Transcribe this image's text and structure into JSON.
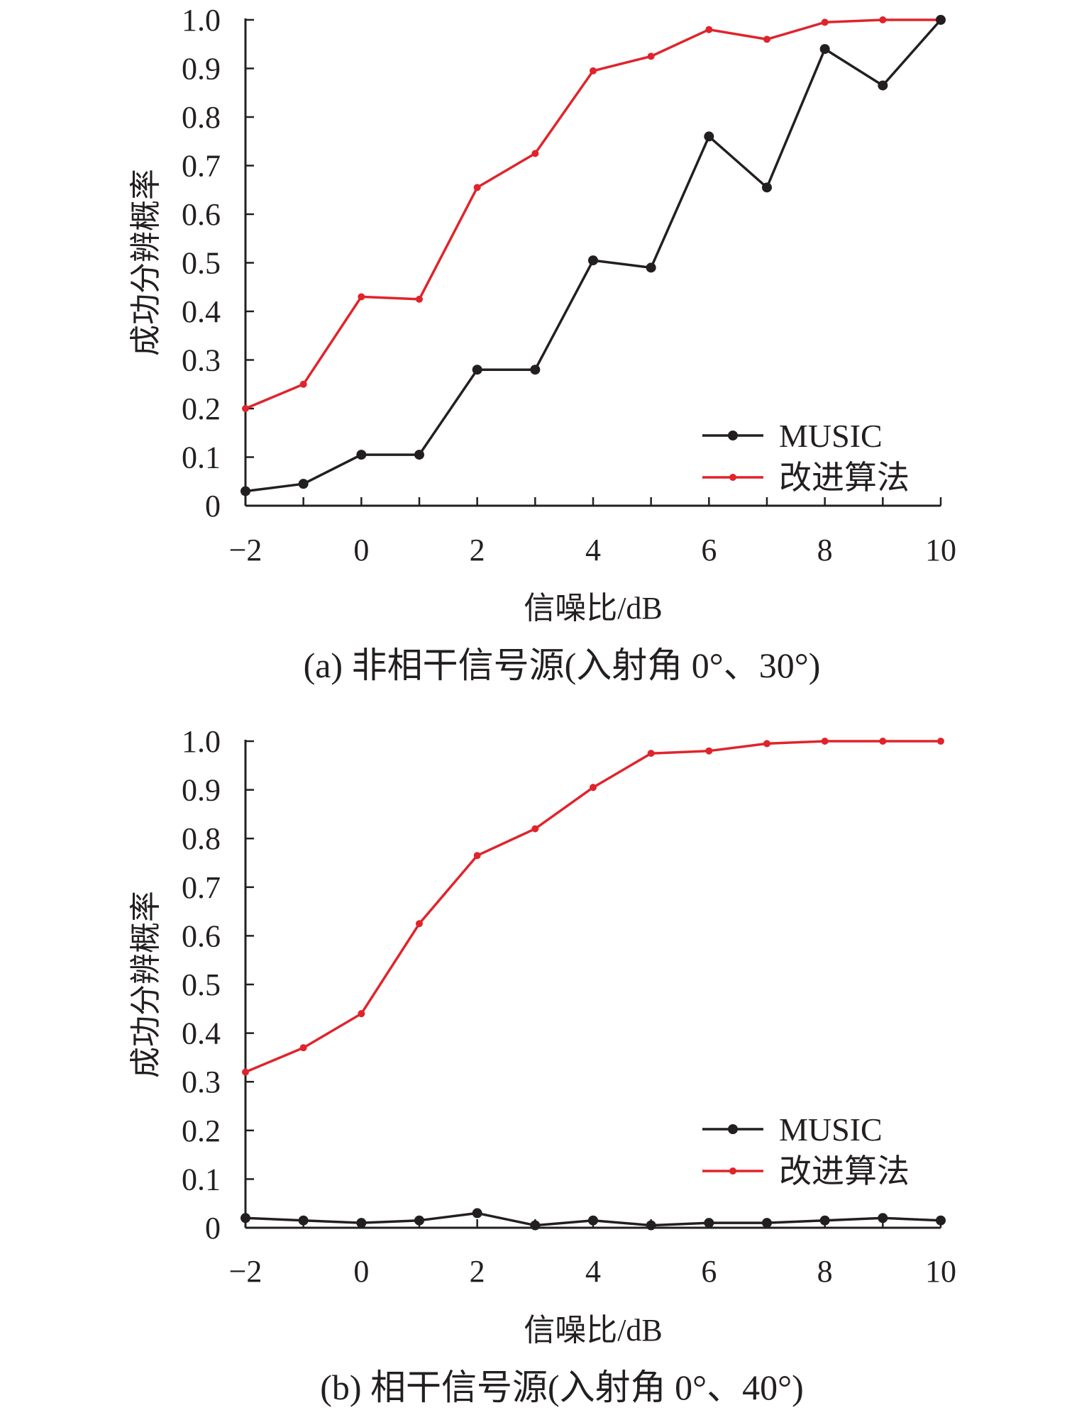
{
  "chart_data": [
    {
      "type": "line",
      "x": [
        -2,
        -1,
        0,
        1,
        2,
        3,
        4,
        5,
        6,
        7,
        8,
        9,
        10
      ],
      "x_tick_labels": [
        "−2",
        "0",
        "2",
        "4",
        "6",
        "8",
        "10"
      ],
      "x_tick_values": [
        -2,
        0,
        2,
        4,
        6,
        8,
        10
      ],
      "y_tick_labels": [
        "0",
        "0.1",
        "0.2",
        "0.3",
        "0.4",
        "0.5",
        "0.6",
        "0.7",
        "0.8",
        "0.9",
        "1.0"
      ],
      "xlim": [
        -2,
        10
      ],
      "ylim": [
        0,
        1
      ],
      "xlabel": "信噪比/dB",
      "ylabel": "成功分辨概率",
      "caption": "(a) 非相干信号源(入射角 0°、30°)",
      "legend_position": "bottom-right",
      "grid": false,
      "series": [
        {
          "name": "MUSIC",
          "color": "#231f20",
          "values": [
            0.03,
            0.045,
            0.105,
            0.105,
            0.28,
            0.28,
            0.505,
            0.49,
            0.76,
            0.655,
            0.94,
            0.865,
            1.0
          ]
        },
        {
          "name": "改进算法",
          "color": "#e0242b",
          "values": [
            0.2,
            0.25,
            0.43,
            0.425,
            0.655,
            0.725,
            0.895,
            0.925,
            0.98,
            0.96,
            0.995,
            1.0,
            1.0
          ]
        }
      ]
    },
    {
      "type": "line",
      "x": [
        -2,
        -1,
        0,
        1,
        2,
        3,
        4,
        5,
        6,
        7,
        8,
        9,
        10
      ],
      "x_tick_labels": [
        "−2",
        "0",
        "2",
        "4",
        "6",
        "8",
        "10"
      ],
      "x_tick_values": [
        -2,
        0,
        2,
        4,
        6,
        8,
        10
      ],
      "y_tick_labels": [
        "0",
        "0.1",
        "0.2",
        "0.3",
        "0.4",
        "0.5",
        "0.6",
        "0.7",
        "0.8",
        "0.9",
        "1.0"
      ],
      "xlim": [
        -2,
        10
      ],
      "ylim": [
        0,
        1
      ],
      "xlabel": "信噪比/dB",
      "ylabel": "成功分辨概率",
      "caption": "(b) 相干信号源(入射角 0°、40°)",
      "legend_position": "bottom-right",
      "grid": false,
      "series": [
        {
          "name": "MUSIC",
          "color": "#231f20",
          "values": [
            0.02,
            0.015,
            0.01,
            0.015,
            0.03,
            0.005,
            0.015,
            0.005,
            0.01,
            0.01,
            0.015,
            0.02,
            0.015
          ]
        },
        {
          "name": "改进算法",
          "color": "#e0242b",
          "values": [
            0.32,
            0.37,
            0.44,
            0.625,
            0.765,
            0.82,
            0.905,
            0.975,
            0.98,
            0.995,
            1.0,
            1.0,
            1.0
          ]
        }
      ]
    }
  ]
}
